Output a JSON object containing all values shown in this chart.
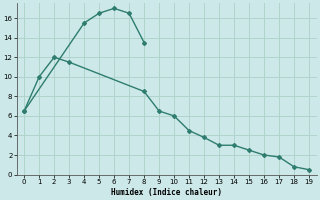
{
  "xlabel": "Humidex (Indice chaleur)",
  "bg_color": "#cce8e8",
  "grid_color": "#b0d4cc",
  "line_color": "#2e7d6e",
  "line1_x": [
    0,
    4,
    5,
    6,
    7,
    8
  ],
  "line1_y": [
    6.5,
    15.5,
    16.5,
    17.0,
    16.5,
    13.5
  ],
  "line2_x": [
    0,
    1,
    2,
    3,
    8,
    9,
    10,
    11,
    12,
    13,
    14,
    15,
    16,
    17,
    18,
    19
  ],
  "line2_y": [
    6.5,
    10.0,
    12.0,
    11.5,
    8.5,
    6.5,
    6.0,
    4.5,
    3.8,
    3.0,
    3.0,
    2.5,
    2.0,
    1.8,
    0.8,
    0.5
  ],
  "xlim_min": -0.5,
  "xlim_max": 19.5,
  "ylim_min": 0,
  "ylim_max": 17.5,
  "xticks": [
    0,
    1,
    2,
    3,
    4,
    5,
    6,
    7,
    8,
    9,
    10,
    11,
    12,
    13,
    14,
    15,
    16,
    17,
    18,
    19
  ],
  "yticks": [
    0,
    2,
    4,
    6,
    8,
    10,
    12,
    14,
    16
  ]
}
